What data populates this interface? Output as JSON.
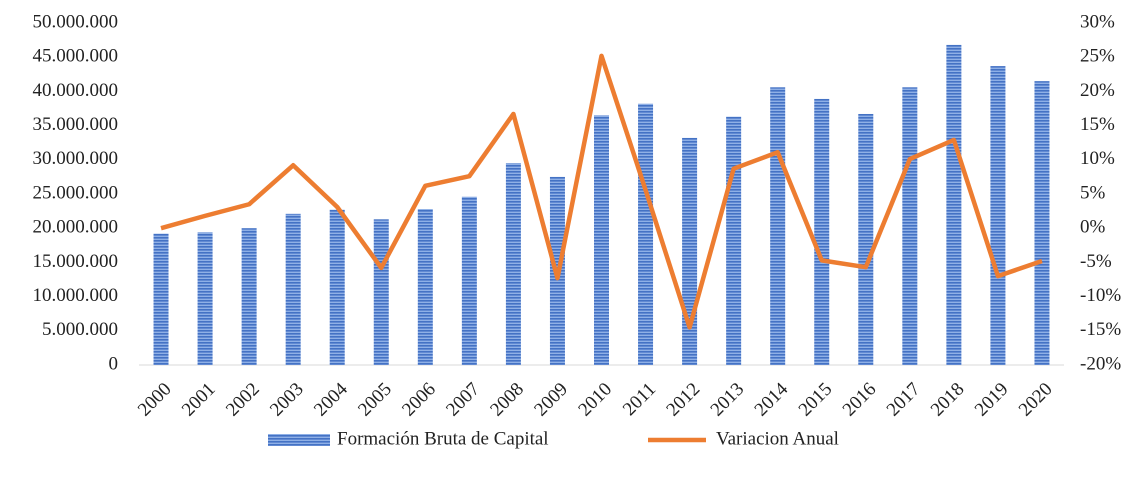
{
  "chart_data": {
    "type": "combo",
    "categories": [
      "2000",
      "2001",
      "2002",
      "2003",
      "2004",
      "2005",
      "2006",
      "2007",
      "2008",
      "2009",
      "2010",
      "2011",
      "2012",
      "2013",
      "2014",
      "2015",
      "2016",
      "2017",
      "2018",
      "2019",
      "2020"
    ],
    "series": [
      {
        "name": "Formación Bruta de Capital",
        "type": "bar",
        "color": "#4472c4",
        "values": [
          19200000,
          19400000,
          20000000,
          22100000,
          22700000,
          21300000,
          22800000,
          24600000,
          29500000,
          27500000,
          36500000,
          38200000,
          33200000,
          36300000,
          40600000,
          38900000,
          36700000,
          40600000,
          46800000,
          43700000,
          41500000
        ]
      },
      {
        "name": "Variacion Anual",
        "type": "line",
        "axis": "y2",
        "color": "#ed7d31",
        "values": [
          0,
          1.8,
          3.5,
          9.2,
          3.1,
          -5.8,
          6.2,
          7.6,
          16.7,
          -7.3,
          25.2,
          5.6,
          -14.5,
          8.7,
          11.1,
          -4.7,
          -5.7,
          10.1,
          12.9,
          -7.0,
          -4.8
        ]
      }
    ],
    "ylim": [
      0,
      50000000
    ],
    "yticks": [
      0,
      {
        "value": 5000000,
        "label": "5.000.000"
      },
      {
        "value": 10000000,
        "label": "10.000.000"
      },
      {
        "value": 15000000,
        "label": "15.000.000"
      },
      {
        "value": 20000000,
        "label": "20.000.000"
      },
      {
        "value": 25000000,
        "label": "25.000.000"
      },
      {
        "value": 30000000,
        "label": "30.000.000"
      },
      {
        "value": 35000000,
        "label": "35.000.000"
      },
      {
        "value": 40000000,
        "label": "40.000.000"
      },
      {
        "value": 45000000,
        "label": "45.000.000"
      },
      {
        "value": 50000000,
        "label": "50.000.000"
      }
    ],
    "y2lim": [
      -20,
      30
    ],
    "y2ticks": [
      {
        "value": -20,
        "label": "-20%"
      },
      {
        "value": -15,
        "label": "-15%"
      },
      {
        "value": -10,
        "label": "-10%"
      },
      {
        "value": -5,
        "label": "-5%"
      },
      {
        "value": 0,
        "label": "0%"
      },
      {
        "value": 5,
        "label": "5%"
      },
      {
        "value": 10,
        "label": "10%"
      },
      {
        "value": 15,
        "label": "15%"
      },
      {
        "value": 20,
        "label": "20%"
      },
      {
        "value": 25,
        "label": "25%"
      },
      {
        "value": 30,
        "label": "30%"
      }
    ],
    "legend": "bottom"
  }
}
